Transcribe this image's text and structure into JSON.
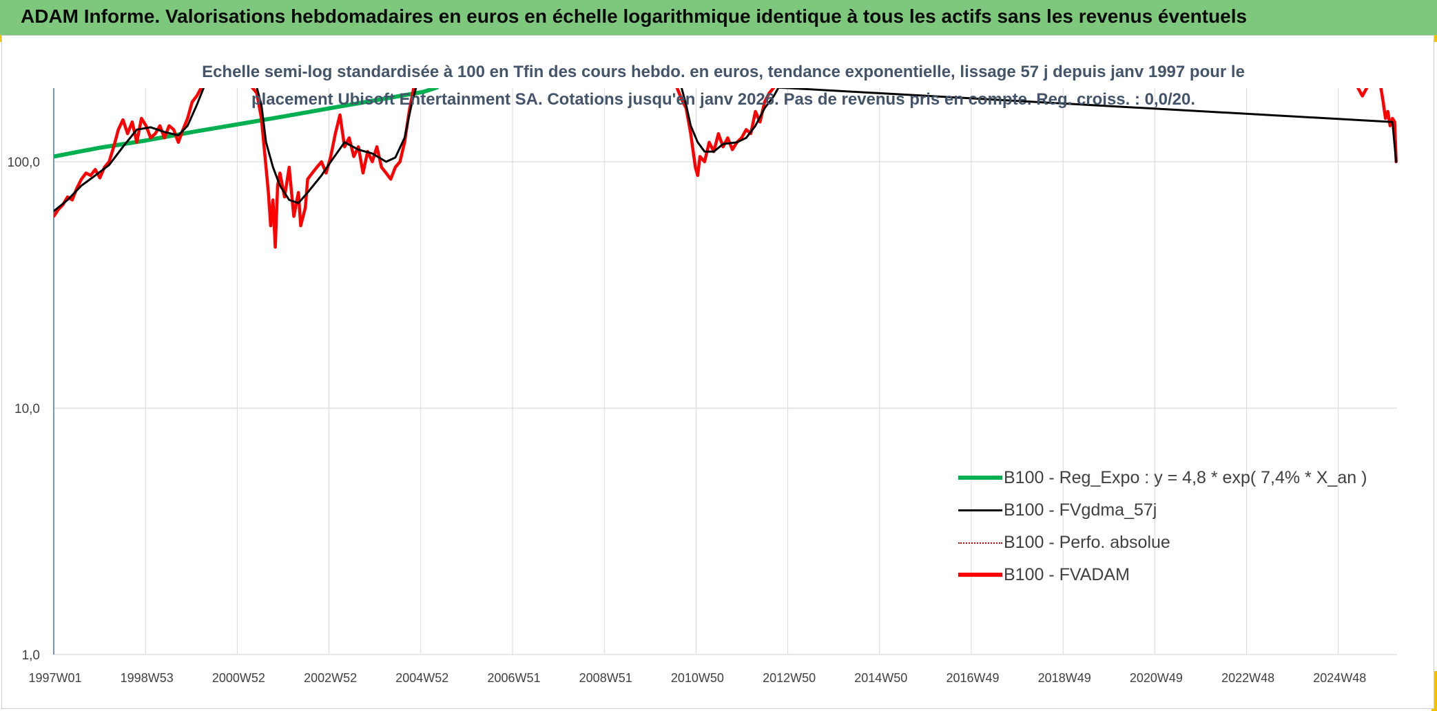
{
  "header": {
    "title": "ADAM Informe. Valorisations hebdomadaires en euros en échelle logarithmique identique à tous les actifs sans les revenus éventuels"
  },
  "colors": {
    "banner": "#7ec87e",
    "reg": "#00b050",
    "fvgdma": "#000000",
    "perfo": "#c00000",
    "fvadam": "#ff0000",
    "grid": "#d9d9d9",
    "axis": "#4472c4"
  },
  "chart_data": {
    "type": "line",
    "title_lines": [
      "Echelle semi-log standardisée à 100 en Tfin des cours hebdo. en euros, tendance exponentielle, lissage 57 j depuis janv 1997 pour le",
      "placement Ubisoft Entertainment SA. Cotations jusqu'en janv 2026. Pas de revenus pris en compte. Reg. croiss. : 0,0/20."
    ],
    "y_scale": "log",
    "ylim": [
      1,
      200
    ],
    "y_ticks": [
      "1,0",
      "10,0",
      "100,0"
    ],
    "x_tick_labels": [
      "1997W01",
      "1998W53",
      "2000W52",
      "2002W52",
      "2004W52",
      "2006W51",
      "2008W51",
      "2010W50",
      "2012W50",
      "2014W50",
      "2016W49",
      "2018W49",
      "2020W49",
      "2022W48",
      "2024W48"
    ],
    "xlim": [
      1997.0,
      2026.1
    ],
    "legend": "bottom-right",
    "series": [
      {
        "name": "B100 - Reg_Expo : y = 4,8 * exp( 7,4% *  X_an )",
        "key": "reg",
        "style": "solid-thick",
        "points": [
          [
            1997.0,
            105
          ],
          [
            1998.0,
            114
          ],
          [
            1999.0,
            122
          ],
          [
            2000.0,
            132
          ],
          [
            2001.0,
            142
          ],
          [
            2002.0,
            153
          ],
          [
            2003.0,
            165
          ],
          [
            2004.0,
            178
          ],
          [
            2005.0,
            192
          ],
          [
            2005.3,
            200
          ]
        ]
      },
      {
        "name": "B100 - FVgdma_57j",
        "key": "fvgdma",
        "style": "solid",
        "points": [
          [
            1997.0,
            63
          ],
          [
            1997.3,
            70
          ],
          [
            1997.6,
            80
          ],
          [
            1997.9,
            88
          ],
          [
            1998.2,
            97
          ],
          [
            1998.5,
            115
          ],
          [
            1998.8,
            135
          ],
          [
            1999.1,
            138
          ],
          [
            1999.4,
            132
          ],
          [
            1999.7,
            128
          ],
          [
            1999.9,
            140
          ],
          [
            2000.1,
            170
          ],
          [
            2000.25,
            200
          ],
          [
            2001.4,
            200
          ],
          [
            2001.5,
            170
          ],
          [
            2001.6,
            120
          ],
          [
            2001.75,
            95
          ],
          [
            2001.9,
            80
          ],
          [
            2002.1,
            70
          ],
          [
            2002.3,
            68
          ],
          [
            2002.5,
            75
          ],
          [
            2002.8,
            88
          ],
          [
            2003.0,
            100
          ],
          [
            2003.3,
            120
          ],
          [
            2003.6,
            112
          ],
          [
            2003.9,
            108
          ],
          [
            2004.2,
            100
          ],
          [
            2004.4,
            104
          ],
          [
            2004.6,
            125
          ],
          [
            2004.75,
            170
          ],
          [
            2004.85,
            200
          ],
          [
            2010.6,
            200
          ],
          [
            2010.7,
            170
          ],
          [
            2010.8,
            140
          ],
          [
            2010.95,
            120
          ],
          [
            2011.1,
            110
          ],
          [
            2011.3,
            110
          ],
          [
            2011.5,
            118
          ],
          [
            2011.8,
            120
          ],
          [
            2012.0,
            125
          ],
          [
            2012.2,
            140
          ],
          [
            2012.4,
            165
          ],
          [
            2012.6,
            185
          ],
          [
            2012.7,
            200
          ],
          [
            2026.0,
            145
          ],
          [
            2026.08,
            100
          ]
        ]
      },
      {
        "name": "B100 - Perfo. absolue",
        "key": "perfo",
        "style": "dotted",
        "points": []
      },
      {
        "name": "B100 - FVADAM",
        "key": "fvadam",
        "style": "solid-thick",
        "points": [
          [
            1997.0,
            60
          ],
          [
            1997.1,
            64
          ],
          [
            1997.2,
            67
          ],
          [
            1997.3,
            72
          ],
          [
            1997.4,
            70
          ],
          [
            1997.5,
            78
          ],
          [
            1997.6,
            85
          ],
          [
            1997.7,
            90
          ],
          [
            1997.8,
            88
          ],
          [
            1997.9,
            93
          ],
          [
            1998.0,
            86
          ],
          [
            1998.1,
            95
          ],
          [
            1998.2,
            100
          ],
          [
            1998.3,
            115
          ],
          [
            1998.4,
            135
          ],
          [
            1998.5,
            148
          ],
          [
            1998.6,
            130
          ],
          [
            1998.7,
            145
          ],
          [
            1998.8,
            120
          ],
          [
            1998.9,
            150
          ],
          [
            1999.0,
            140
          ],
          [
            1999.1,
            125
          ],
          [
            1999.2,
            130
          ],
          [
            1999.3,
            140
          ],
          [
            1999.4,
            125
          ],
          [
            1999.5,
            140
          ],
          [
            1999.6,
            135
          ],
          [
            1999.7,
            120
          ],
          [
            1999.8,
            135
          ],
          [
            1999.9,
            150
          ],
          [
            2000.0,
            175
          ],
          [
            2000.1,
            185
          ],
          [
            2000.2,
            200
          ],
          [
            2001.3,
            200
          ],
          [
            2001.4,
            190
          ],
          [
            2001.5,
            150
          ],
          [
            2001.6,
            95
          ],
          [
            2001.65,
            75
          ],
          [
            2001.7,
            55
          ],
          [
            2001.75,
            70
          ],
          [
            2001.8,
            45
          ],
          [
            2001.85,
            80
          ],
          [
            2001.9,
            90
          ],
          [
            2002.0,
            72
          ],
          [
            2002.1,
            95
          ],
          [
            2002.2,
            60
          ],
          [
            2002.3,
            75
          ],
          [
            2002.35,
            55
          ],
          [
            2002.45,
            65
          ],
          [
            2002.5,
            85
          ],
          [
            2002.6,
            90
          ],
          [
            2002.7,
            95
          ],
          [
            2002.8,
            100
          ],
          [
            2002.9,
            90
          ],
          [
            2003.0,
            105
          ],
          [
            2003.1,
            130
          ],
          [
            2003.2,
            155
          ],
          [
            2003.3,
            115
          ],
          [
            2003.4,
            125
          ],
          [
            2003.5,
            105
          ],
          [
            2003.6,
            115
          ],
          [
            2003.7,
            90
          ],
          [
            2003.8,
            110
          ],
          [
            2003.9,
            100
          ],
          [
            2004.0,
            115
          ],
          [
            2004.1,
            95
          ],
          [
            2004.2,
            90
          ],
          [
            2004.3,
            85
          ],
          [
            2004.4,
            95
          ],
          [
            2004.5,
            100
          ],
          [
            2004.6,
            120
          ],
          [
            2004.7,
            160
          ],
          [
            2004.8,
            200
          ],
          [
            2010.5,
            200
          ],
          [
            2010.6,
            180
          ],
          [
            2010.7,
            165
          ],
          [
            2010.8,
            130
          ],
          [
            2010.9,
            95
          ],
          [
            2010.95,
            88
          ],
          [
            2011.0,
            105
          ],
          [
            2011.1,
            100
          ],
          [
            2011.2,
            120
          ],
          [
            2011.3,
            110
          ],
          [
            2011.4,
            130
          ],
          [
            2011.5,
            115
          ],
          [
            2011.6,
            125
          ],
          [
            2011.7,
            112
          ],
          [
            2011.8,
            120
          ],
          [
            2011.9,
            125
          ],
          [
            2012.0,
            135
          ],
          [
            2012.1,
            130
          ],
          [
            2012.2,
            160
          ],
          [
            2012.3,
            145
          ],
          [
            2012.4,
            175
          ],
          [
            2012.5,
            190
          ],
          [
            2012.6,
            200
          ],
          [
            2025.25,
            200
          ],
          [
            2025.35,
            185
          ],
          [
            2025.45,
            200
          ],
          [
            2025.75,
            200
          ],
          [
            2025.8,
            175
          ],
          [
            2025.85,
            150
          ],
          [
            2025.9,
            160
          ],
          [
            2025.95,
            140
          ],
          [
            2026.0,
            150
          ],
          [
            2026.05,
            145
          ],
          [
            2026.08,
            100
          ]
        ]
      }
    ]
  }
}
